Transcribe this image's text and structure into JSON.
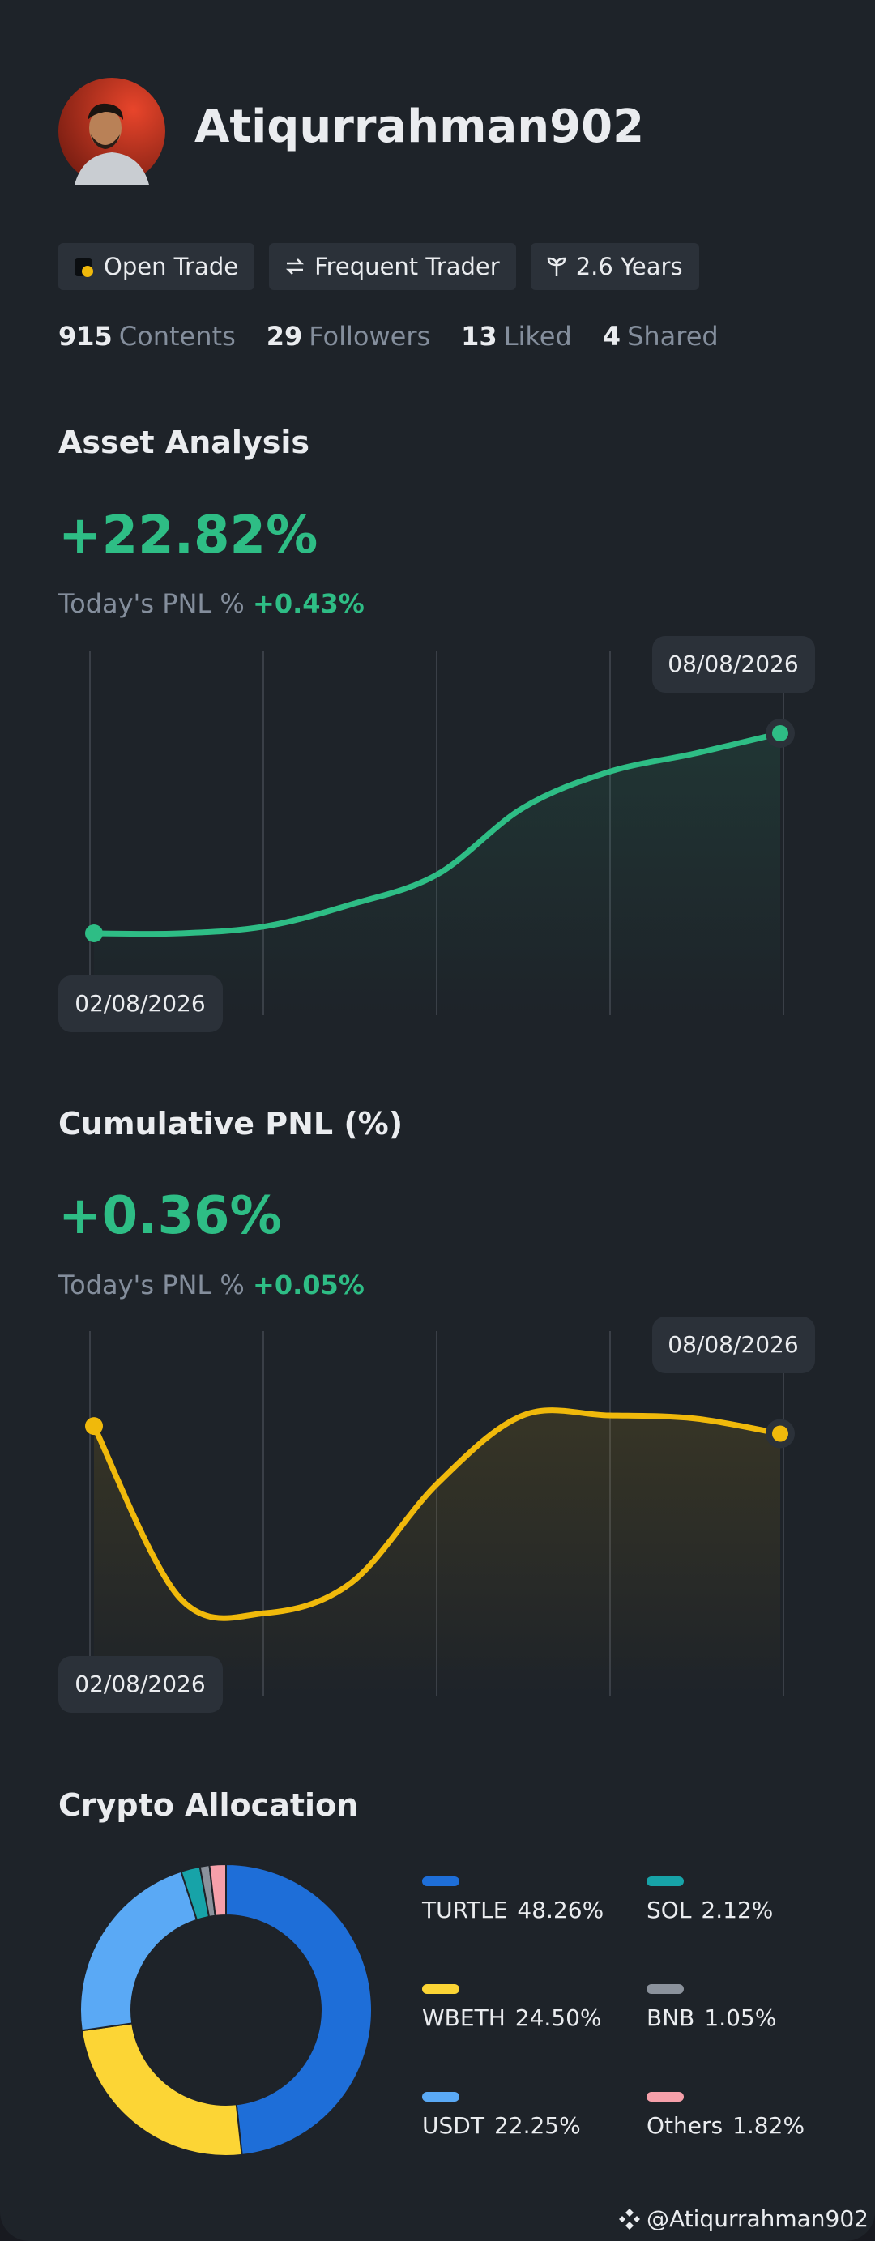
{
  "profile": {
    "name": "Atiqurrahman902",
    "badges": [
      "Open Trade",
      "Frequent Trader",
      "2.6 Years"
    ],
    "stats": [
      {
        "value": 915,
        "label": "Contents"
      },
      {
        "value": 29,
        "label": "Followers"
      },
      {
        "value": 13,
        "label": "Liked"
      },
      {
        "value": 4,
        "label": "Shared"
      }
    ]
  },
  "asset_analysis": {
    "title": "Asset Analysis",
    "headline": "+22.82%",
    "today_label": "Today's PNL %",
    "today_value": "+0.43%",
    "chart": {
      "type": "line",
      "color": "#2ebd85",
      "start_label": "02/08/2026",
      "end_label": "08/08/2026",
      "values": [
        0,
        0,
        0.8,
        3.3,
        6.7,
        14.3,
        18.4,
        20.5,
        22.82
      ]
    }
  },
  "cumulative_pnl": {
    "title": "Cumulative PNL (%)",
    "headline": "+0.36%",
    "today_label": "Today's PNL %",
    "today_value": "+0.05%",
    "chart": {
      "type": "line",
      "color": "#f0b90b",
      "start_label": "02/08/2026",
      "end_label": "08/08/2026",
      "values": [
        0.41,
        -0.72,
        -0.82,
        -0.62,
        0.03,
        0.48,
        0.48,
        0.46,
        0.36
      ]
    }
  },
  "crypto_allocation": {
    "title": "Crypto Allocation",
    "type": "donut",
    "items": [
      {
        "name": "TURTLE",
        "value": 48.26,
        "value_label": "48.26%",
        "color": "#1e6ed8"
      },
      {
        "name": "WBETH",
        "value": 24.5,
        "value_label": "24.50%",
        "color": "#fcd535"
      },
      {
        "name": "USDT",
        "value": 22.25,
        "value_label": "22.25%",
        "color": "#5aa9f5"
      },
      {
        "name": "SOL",
        "value": 2.12,
        "value_label": "2.12%",
        "color": "#17a3a8"
      },
      {
        "name": "BNB",
        "value": 1.05,
        "value_label": "1.05%",
        "color": "#8b929c"
      },
      {
        "name": "Others",
        "value": 1.82,
        "value_label": "1.82%",
        "color": "#f6a0aa"
      }
    ]
  },
  "footer": {
    "handle": "@Atiqurrahman902"
  }
}
